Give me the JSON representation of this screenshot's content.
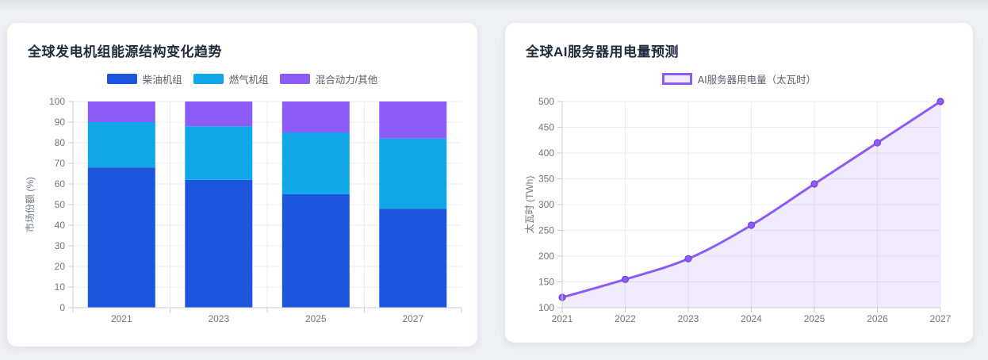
{
  "page": {
    "background": "#eef0f4",
    "card_background": "#ffffff"
  },
  "chart_data": [
    {
      "type": "bar",
      "stacked": true,
      "title": "全球发电机组能源结构变化趋势",
      "categories": [
        "2021",
        "2023",
        "2025",
        "2027"
      ],
      "series": [
        {
          "name": "柴油机组",
          "color": "#1d56dd",
          "values": [
            68,
            62,
            55,
            48
          ]
        },
        {
          "name": "燃气机组",
          "color": "#10a6e8",
          "values": [
            22,
            26,
            30,
            34
          ]
        },
        {
          "name": "混合动力/其他",
          "color": "#8b5cf6",
          "values": [
            10,
            12,
            15,
            18
          ]
        }
      ],
      "xlabel": "",
      "ylabel": "市场份额 (%)",
      "ylim": [
        0,
        100
      ],
      "ytick_step": 10,
      "grid": true,
      "legend_position": "top"
    },
    {
      "type": "area",
      "title": "全球AI服务器用电量预测",
      "x": [
        "2021",
        "2022",
        "2023",
        "2024",
        "2025",
        "2026",
        "2027"
      ],
      "series": [
        {
          "name": "AI服务器用电量（太瓦时）",
          "color": "#8b5cf6",
          "fill_opacity": 0.12,
          "values": [
            120,
            155,
            195,
            260,
            340,
            420,
            500
          ]
        }
      ],
      "xlabel": "",
      "ylabel": "太瓦时 (TWh)",
      "ylim": [
        100,
        500
      ],
      "ytick_step": 50,
      "grid": true,
      "legend_position": "top"
    }
  ]
}
